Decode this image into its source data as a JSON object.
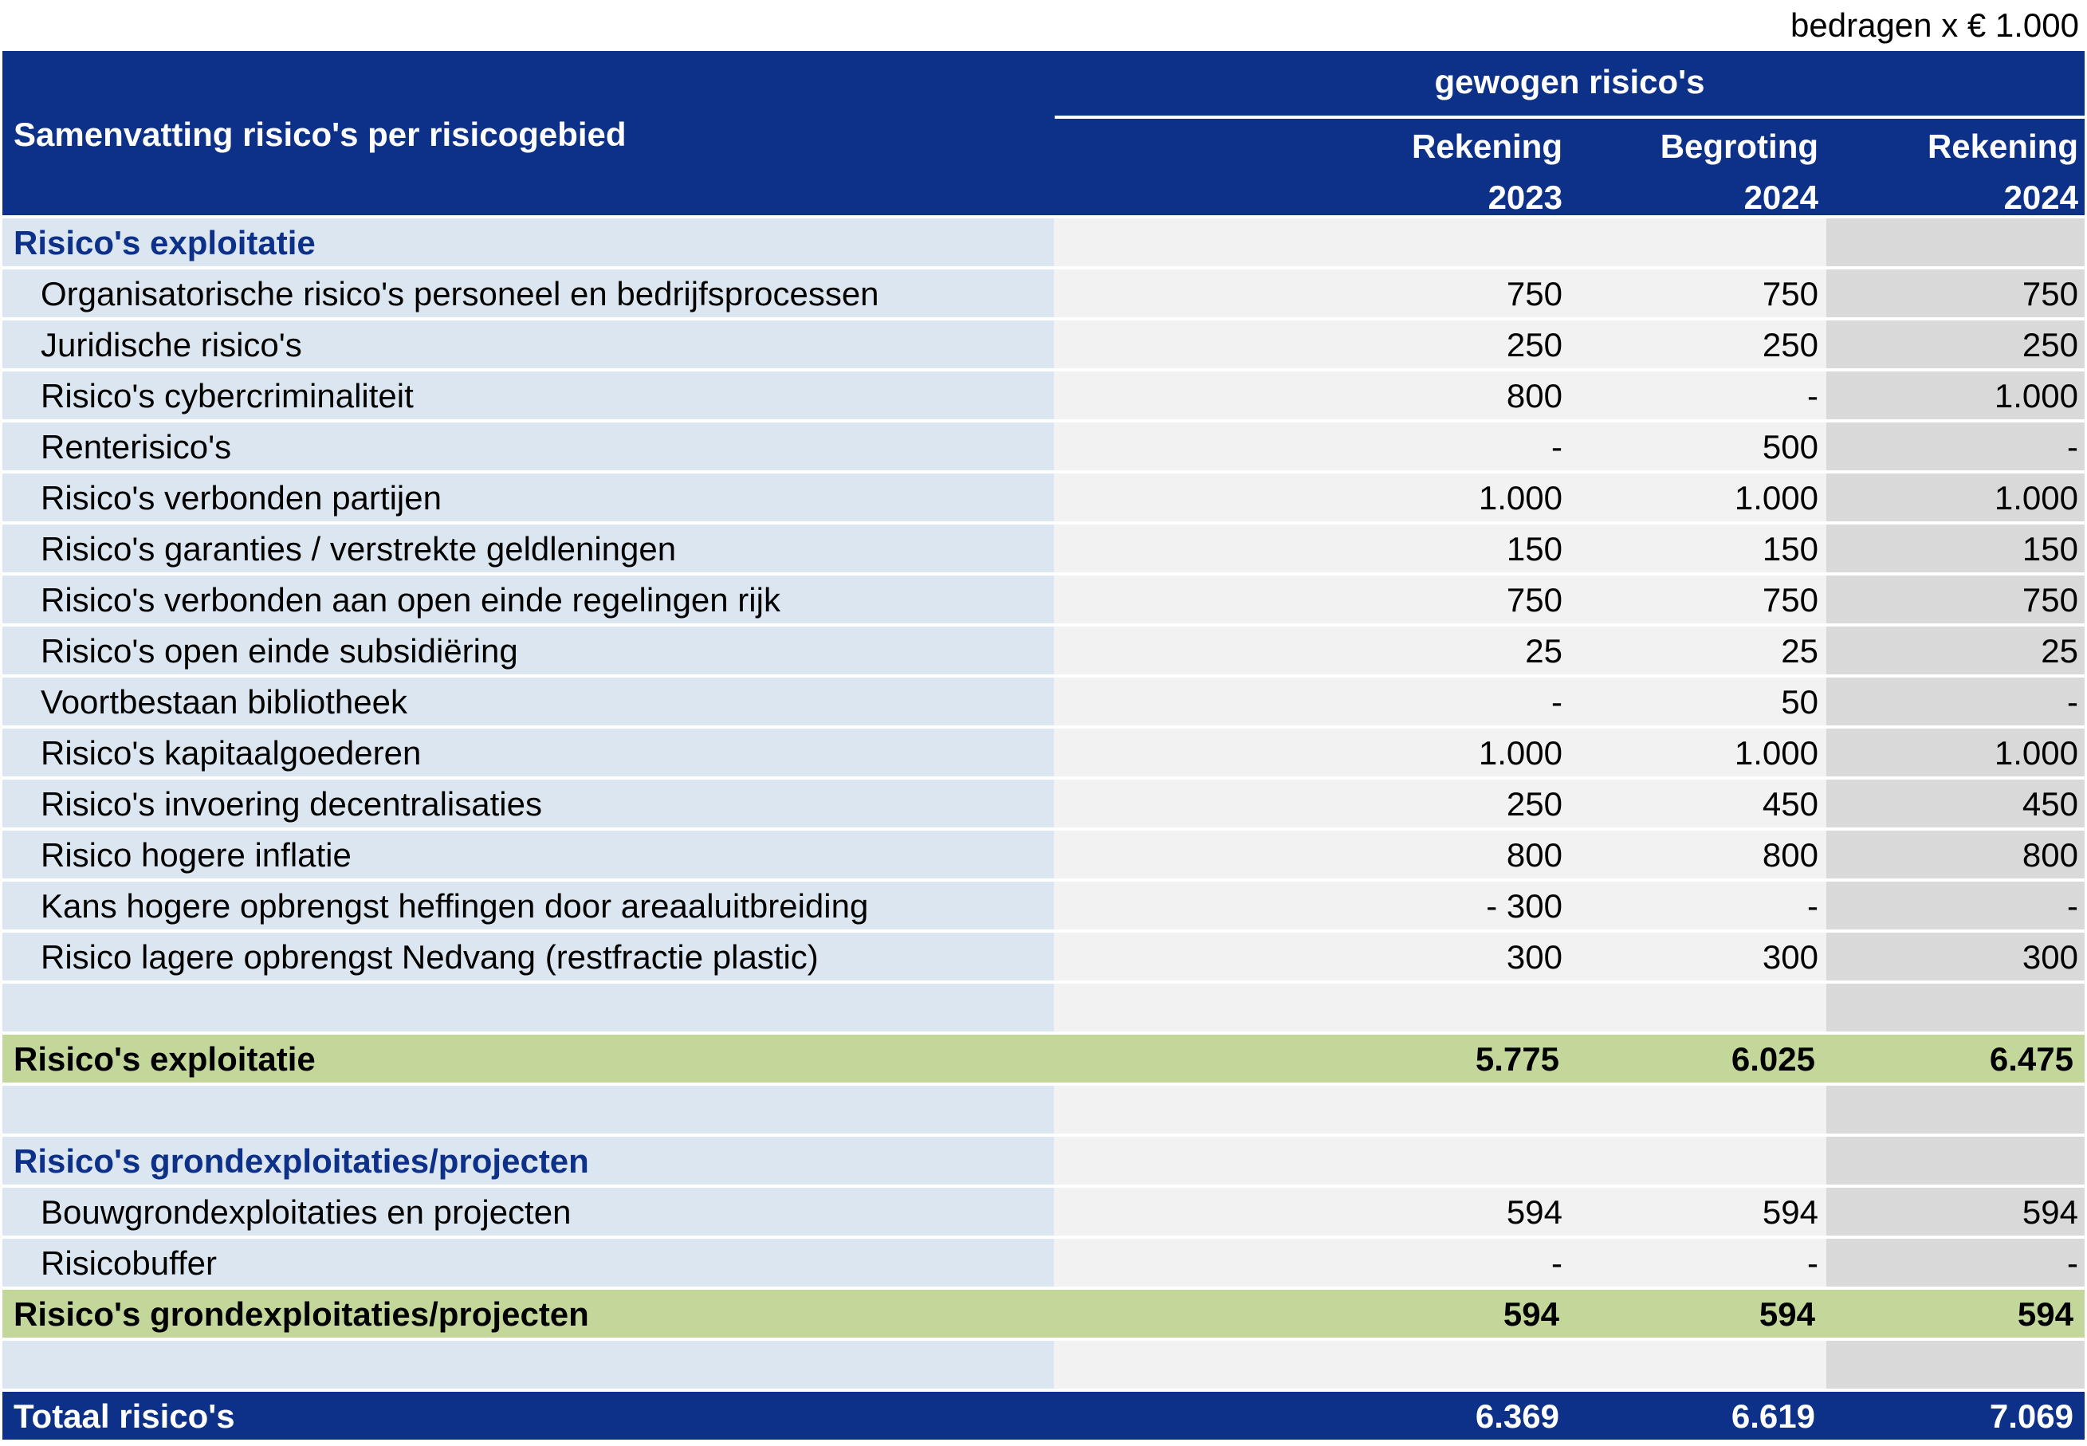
{
  "unit_note": "bedragen x € 1.000",
  "header": {
    "title": "Samenvatting risico's per risicogebied",
    "group": "gewogen risico's",
    "columns": [
      {
        "line1": "Rekening",
        "line2": "2023"
      },
      {
        "line1": "Begroting",
        "line2": "2024"
      },
      {
        "line1": "Rekening",
        "line2": "2024"
      }
    ]
  },
  "colors": {
    "header_blue": "#0d3088",
    "label_bg": "#dce6f0",
    "data_bg": "#f2f2f2",
    "last_col_bg": "#d9d9d9",
    "subtotal_green": "#c4d79b"
  },
  "rows": [
    {
      "type": "section",
      "label": "Risico's exploitatie",
      "values": [
        "",
        "",
        ""
      ]
    },
    {
      "type": "item",
      "label": "Organisatorische risico's personeel en bedrijfsprocessen",
      "values": [
        "750",
        "750",
        "750"
      ]
    },
    {
      "type": "item",
      "label": "Juridische risico's",
      "values": [
        "250",
        "250",
        "250"
      ]
    },
    {
      "type": "item",
      "label": "Risico's cybercriminaliteit",
      "values": [
        "800",
        "-",
        "1.000"
      ]
    },
    {
      "type": "item",
      "label": "Renterisico's",
      "values": [
        "-",
        "500",
        "-"
      ]
    },
    {
      "type": "item",
      "label": "Risico's verbonden partijen",
      "values": [
        "1.000",
        "1.000",
        "1.000"
      ]
    },
    {
      "type": "item",
      "label": "Risico's garanties / verstrekte geldleningen",
      "values": [
        "150",
        "150",
        "150"
      ]
    },
    {
      "type": "item",
      "label": "Risico's verbonden aan open einde regelingen rijk",
      "values": [
        "750",
        "750",
        "750"
      ]
    },
    {
      "type": "item",
      "label": "Risico's open einde subsidiëring",
      "values": [
        "25",
        "25",
        "25"
      ]
    },
    {
      "type": "item",
      "label": "Voortbestaan bibliotheek",
      "values": [
        "-",
        "50",
        "-"
      ]
    },
    {
      "type": "item",
      "label": "Risico's kapitaalgoederen",
      "values": [
        "1.000",
        "1.000",
        "1.000"
      ]
    },
    {
      "type": "item",
      "label": "Risico's invoering decentralisaties",
      "values": [
        "250",
        "450",
        "450"
      ]
    },
    {
      "type": "item",
      "label": "Risico hogere inflatie",
      "values": [
        "800",
        "800",
        "800"
      ]
    },
    {
      "type": "item",
      "label": "Kans hogere opbrengst heffingen door areaaluitbreiding",
      "values": [
        "- 300",
        "-",
        "-"
      ]
    },
    {
      "type": "item",
      "label": "Risico lagere opbrengst Nedvang (restfractie plastic)",
      "values": [
        "300",
        "300",
        "300"
      ]
    },
    {
      "type": "blank",
      "label": "",
      "values": [
        "",
        "",
        ""
      ]
    },
    {
      "type": "sub",
      "label": "Risico's exploitatie",
      "values": [
        "5.775",
        "6.025",
        "6.475"
      ]
    },
    {
      "type": "blank",
      "label": "",
      "values": [
        "",
        "",
        ""
      ]
    },
    {
      "type": "section",
      "label": "Risico's grondexploitaties/projecten",
      "values": [
        "",
        "",
        ""
      ]
    },
    {
      "type": "item",
      "label": "Bouwgrondexploitaties en projecten",
      "values": [
        "594",
        "594",
        "594"
      ]
    },
    {
      "type": "item",
      "label": "Risicobuffer",
      "values": [
        "-",
        "-",
        "-"
      ]
    },
    {
      "type": "sub",
      "label": "Risico's grondexploitaties/projecten",
      "values": [
        "594",
        "594",
        "594"
      ]
    },
    {
      "type": "blank",
      "label": "",
      "values": [
        "",
        "",
        ""
      ]
    },
    {
      "type": "total",
      "label": "Totaal risico's",
      "values": [
        "6.369",
        "6.619",
        "7.069"
      ]
    }
  ]
}
